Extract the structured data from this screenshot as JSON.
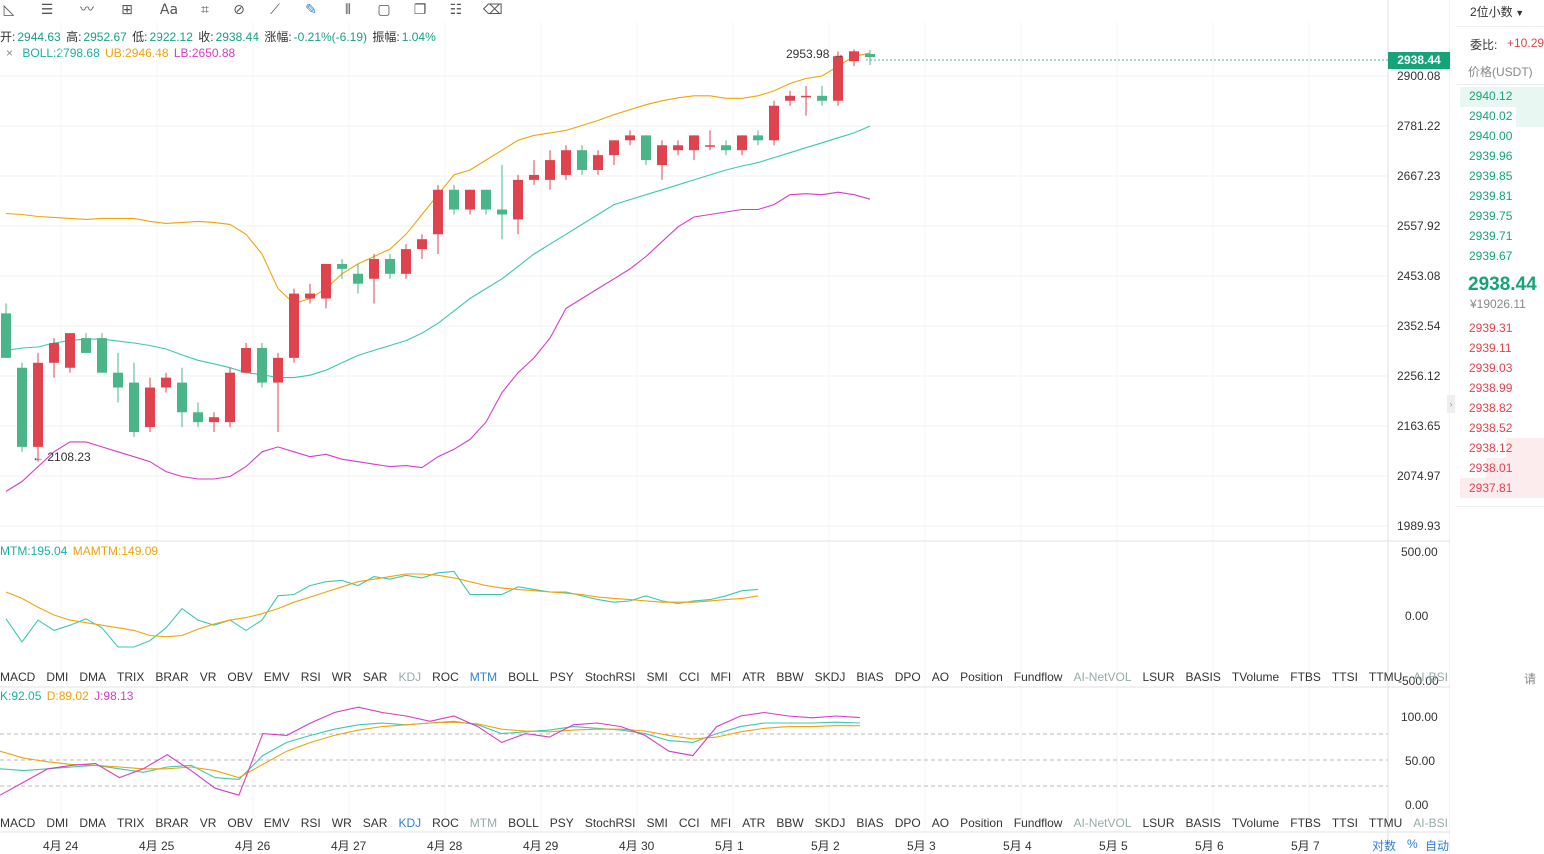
{
  "toolbar": {
    "icons": [
      "line-tool-icon",
      "horizontal-lines-icon",
      "wave-icon",
      "crosshair-add-icon",
      "text-icon",
      "brush-icon",
      "measure-icon",
      "ruler-icon",
      "pen-icon",
      "pattern-icon",
      "lock-icon",
      "copy-icon",
      "edit-icon",
      "trash-icon"
    ],
    "text_label": "Aa"
  },
  "ohlc": {
    "open_label": "开:",
    "open": "2944.63",
    "high_label": "高:",
    "high": "2952.67",
    "low_label": "低:",
    "low": "2922.12",
    "close_label": "收:",
    "close": "2938.44",
    "change_label": "涨幅:",
    "change": "-0.21%(-6.19)",
    "amp_label": "振幅:",
    "amp": "1.04%"
  },
  "boll": {
    "close_symbol": "×",
    "boll": "BOLL:2798.68",
    "ub": "UB:2946.48",
    "lb": "LB:2650.88"
  },
  "mtm": {
    "mtm": "MTM:195.04",
    "mamtm": "MAMTM:149.09"
  },
  "kdj": {
    "k": "K:92.05",
    "d": "D:89.02",
    "j": "J:98.13"
  },
  "price_axis": [
    "2900.08",
    "2781.22",
    "2667.23",
    "2557.92",
    "2453.08",
    "2352.54",
    "2256.12",
    "2163.65",
    "2074.97",
    "1989.93"
  ],
  "mtm_axis": [
    "500.00",
    "0.00",
    "-500.00"
  ],
  "kdj_axis": [
    "100.00",
    "50.00",
    "0.00"
  ],
  "last_price_tag": "2938.44",
  "annotations": {
    "high_mark": "2953.98",
    "low_mark": "2108.23"
  },
  "indicator_tabs": [
    "MACD",
    "DMI",
    "DMA",
    "TRIX",
    "BRAR",
    "VR",
    "OBV",
    "EMV",
    "RSI",
    "WR",
    "SAR",
    "KDJ",
    "ROC",
    "MTM",
    "BOLL",
    "PSY",
    "StochRSI",
    "SMI",
    "CCI",
    "MFI",
    "ATR",
    "BBW",
    "SKDJ",
    "BIAS",
    "DPO",
    "AO",
    "Position",
    "Fundflow",
    "AI-NetVOL",
    "LSUR",
    "BASIS",
    "TVolume",
    "FTBS",
    "TTSI",
    "TTMU",
    "AI-BSI"
  ],
  "time_axis": [
    "4月 24",
    "4月 25",
    "4月 26",
    "4月 27",
    "4月 28",
    "4月 29",
    "4月 30",
    "5月 1",
    "5月 2",
    "5月 3",
    "5月 4",
    "5月 5",
    "5月 6",
    "5月 7"
  ],
  "bottom_controls": {
    "log": "对数",
    "percent": "%",
    "auto": "自动"
  },
  "sidebar": {
    "decimals": "2位小数",
    "ratio_label": "委比:",
    "ratio_value": "+10.29",
    "price_header": "价格(USDT)",
    "bids": [
      "2940.12",
      "2940.02",
      "2940.00",
      "2939.96",
      "2939.85",
      "2939.81",
      "2939.75",
      "2939.71",
      "2939.67"
    ],
    "last_price": "2938.44",
    "last_price_cny": "¥19026.11",
    "asks": [
      "2939.31",
      "2939.11",
      "2939.03",
      "2938.99",
      "2938.82",
      "2938.52",
      "2938.12",
      "2938.01",
      "2937.81"
    ],
    "side_text": "请"
  },
  "colors": {
    "up": "#e0434e",
    "down": "#4bb58a",
    "mid": "#3cc8b0",
    "upper": "#f0a30a",
    "lower": "#d63cc6"
  },
  "chart_data": {
    "type": "candlestick",
    "title": "",
    "ylim": [
      1950,
      2980
    ],
    "candles": [
      {
        "o": 2420,
        "h": 2440,
        "l": 2330,
        "c": 2330
      },
      {
        "o": 2310,
        "h": 2320,
        "l": 2140,
        "c": 2150
      },
      {
        "o": 2150,
        "h": 2340,
        "l": 2120,
        "c": 2320
      },
      {
        "o": 2320,
        "h": 2370,
        "l": 2290,
        "c": 2360
      },
      {
        "o": 2310,
        "h": 2380,
        "l": 2300,
        "c": 2380
      },
      {
        "o": 2370,
        "h": 2380,
        "l": 2340,
        "c": 2340
      },
      {
        "o": 2370,
        "h": 2380,
        "l": 2300,
        "c": 2300
      },
      {
        "o": 2300,
        "h": 2340,
        "l": 2240,
        "c": 2270
      },
      {
        "o": 2280,
        "h": 2320,
        "l": 2170,
        "c": 2180
      },
      {
        "o": 2190,
        "h": 2290,
        "l": 2180,
        "c": 2270
      },
      {
        "o": 2270,
        "h": 2300,
        "l": 2260,
        "c": 2290
      },
      {
        "o": 2280,
        "h": 2310,
        "l": 2190,
        "c": 2220
      },
      {
        "o": 2220,
        "h": 2240,
        "l": 2190,
        "c": 2200
      },
      {
        "o": 2200,
        "h": 2220,
        "l": 2180,
        "c": 2210
      },
      {
        "o": 2200,
        "h": 2310,
        "l": 2190,
        "c": 2300
      },
      {
        "o": 2300,
        "h": 2360,
        "l": 2300,
        "c": 2350
      },
      {
        "o": 2350,
        "h": 2360,
        "l": 2270,
        "c": 2280
      },
      {
        "o": 2280,
        "h": 2340,
        "l": 2180,
        "c": 2330
      },
      {
        "o": 2330,
        "h": 2470,
        "l": 2320,
        "c": 2460
      },
      {
        "o": 2450,
        "h": 2480,
        "l": 2440,
        "c": 2460
      },
      {
        "o": 2450,
        "h": 2520,
        "l": 2430,
        "c": 2520
      },
      {
        "o": 2520,
        "h": 2530,
        "l": 2490,
        "c": 2510
      },
      {
        "o": 2500,
        "h": 2520,
        "l": 2460,
        "c": 2480
      },
      {
        "o": 2490,
        "h": 2540,
        "l": 2440,
        "c": 2530
      },
      {
        "o": 2530,
        "h": 2540,
        "l": 2490,
        "c": 2500
      },
      {
        "o": 2500,
        "h": 2560,
        "l": 2490,
        "c": 2550
      },
      {
        "o": 2550,
        "h": 2580,
        "l": 2530,
        "c": 2570
      },
      {
        "o": 2580,
        "h": 2680,
        "l": 2540,
        "c": 2670
      },
      {
        "o": 2670,
        "h": 2680,
        "l": 2620,
        "c": 2630
      },
      {
        "o": 2630,
        "h": 2670,
        "l": 2620,
        "c": 2670
      },
      {
        "o": 2670,
        "h": 2670,
        "l": 2620,
        "c": 2630
      },
      {
        "o": 2630,
        "h": 2720,
        "l": 2570,
        "c": 2620
      },
      {
        "o": 2610,
        "h": 2700,
        "l": 2580,
        "c": 2690
      },
      {
        "o": 2690,
        "h": 2730,
        "l": 2680,
        "c": 2700
      },
      {
        "o": 2690,
        "h": 2750,
        "l": 2670,
        "c": 2730
      },
      {
        "o": 2700,
        "h": 2760,
        "l": 2690,
        "c": 2750
      },
      {
        "o": 2750,
        "h": 2760,
        "l": 2700,
        "c": 2710
      },
      {
        "o": 2710,
        "h": 2750,
        "l": 2700,
        "c": 2740
      },
      {
        "o": 2740,
        "h": 2770,
        "l": 2720,
        "c": 2770
      },
      {
        "o": 2770,
        "h": 2790,
        "l": 2760,
        "c": 2780
      },
      {
        "o": 2780,
        "h": 2780,
        "l": 2720,
        "c": 2730
      },
      {
        "o": 2720,
        "h": 2770,
        "l": 2690,
        "c": 2760
      },
      {
        "o": 2750,
        "h": 2770,
        "l": 2740,
        "c": 2760
      },
      {
        "o": 2750,
        "h": 2780,
        "l": 2730,
        "c": 2780
      },
      {
        "o": 2760,
        "h": 2790,
        "l": 2750,
        "c": 2760
      },
      {
        "o": 2760,
        "h": 2770,
        "l": 2740,
        "c": 2750
      },
      {
        "o": 2750,
        "h": 2780,
        "l": 2740,
        "c": 2780
      },
      {
        "o": 2780,
        "h": 2790,
        "l": 2760,
        "c": 2770
      },
      {
        "o": 2770,
        "h": 2850,
        "l": 2760,
        "c": 2840
      },
      {
        "o": 2850,
        "h": 2870,
        "l": 2840,
        "c": 2860
      },
      {
        "o": 2860,
        "h": 2880,
        "l": 2820,
        "c": 2860
      },
      {
        "o": 2860,
        "h": 2880,
        "l": 2840,
        "c": 2850
      },
      {
        "o": 2850,
        "h": 2950,
        "l": 2840,
        "c": 2940
      },
      {
        "o": 2930,
        "h": 2954,
        "l": 2920,
        "c": 2950
      },
      {
        "o": 2944.63,
        "h": 2952.67,
        "l": 2922.12,
        "c": 2938.44
      }
    ],
    "boll_mid": [
      2345,
      2350,
      2352,
      2360,
      2365,
      2368,
      2368,
      2364,
      2360,
      2355,
      2348,
      2336,
      2325,
      2318,
      2310,
      2300,
      2296,
      2290,
      2290,
      2295,
      2305,
      2320,
      2335,
      2345,
      2355,
      2365,
      2380,
      2400,
      2425,
      2450,
      2470,
      2490,
      2515,
      2540,
      2560,
      2580,
      2600,
      2620,
      2640,
      2650,
      2660,
      2670,
      2680,
      2690,
      2700,
      2710,
      2718,
      2725,
      2735,
      2745,
      2755,
      2765,
      2775,
      2785,
      2798.68
    ],
    "boll_upper": [
      2622,
      2620,
      2616,
      2614,
      2612,
      2610,
      2612,
      2612,
      2612,
      2606,
      2602,
      2604,
      2606,
      2604,
      2600,
      2580,
      2540,
      2470,
      2440,
      2450,
      2470,
      2500,
      2520,
      2535,
      2550,
      2580,
      2620,
      2660,
      2700,
      2710,
      2730,
      2750,
      2770,
      2780,
      2785,
      2790,
      2800,
      2810,
      2822,
      2832,
      2842,
      2850,
      2856,
      2860,
      2860,
      2855,
      2855,
      2860,
      2870,
      2885,
      2895,
      2900,
      2920,
      2940,
      2946.48
    ],
    "boll_lower": [
      2060,
      2080,
      2110,
      2140,
      2160,
      2160,
      2150,
      2140,
      2130,
      2120,
      2100,
      2090,
      2085,
      2085,
      2090,
      2110,
      2140,
      2150,
      2140,
      2130,
      2135,
      2125,
      2120,
      2115,
      2110,
      2112,
      2108,
      2130,
      2145,
      2165,
      2200,
      2260,
      2300,
      2330,
      2370,
      2430,
      2450,
      2470,
      2490,
      2510,
      2535,
      2565,
      2595,
      2615,
      2620,
      2625,
      2630,
      2630,
      2640,
      2660,
      2662,
      2660,
      2665,
      2660,
      2650.88
    ],
    "mtm": [
      -30,
      -210,
      -40,
      -120,
      -80,
      -30,
      -100,
      -250,
      -250,
      -200,
      -100,
      50,
      -40,
      -80,
      -40,
      -120,
      -40,
      150,
      160,
      230,
      260,
      270,
      230,
      300,
      280,
      310,
      290,
      330,
      340,
      160,
      160,
      160,
      220,
      200,
      180,
      180,
      150,
      120,
      100,
      110,
      150,
      110,
      90,
      110,
      120,
      150,
      190,
      200
    ],
    "mamtm": [
      180,
      130,
      60,
      0,
      -40,
      -60,
      -80,
      -100,
      -120,
      -160,
      -170,
      -160,
      -110,
      -70,
      -40,
      -20,
      10,
      50,
      100,
      140,
      180,
      220,
      260,
      280,
      300,
      320,
      320,
      310,
      290,
      260,
      230,
      210,
      200,
      190,
      180,
      170,
      160,
      140,
      130,
      120,
      110,
      100,
      100,
      100,
      110,
      120,
      130,
      149.09
    ],
    "kdj_k": [
      40,
      38,
      40,
      42,
      44,
      40,
      36,
      42,
      44,
      30,
      28,
      55,
      70,
      78,
      85,
      90,
      92,
      90,
      92,
      94,
      90,
      80,
      82,
      84,
      88,
      86,
      84,
      80,
      72,
      70,
      80,
      88,
      92,
      92,
      92,
      93,
      92.05
    ],
    "kdj_d": [
      60,
      52,
      48,
      45,
      44,
      42,
      40,
      40,
      42,
      38,
      30,
      45,
      60,
      70,
      78,
      84,
      88,
      90,
      92,
      93,
      91,
      85,
      83,
      82,
      84,
      85,
      85,
      83,
      78,
      74,
      76,
      82,
      86,
      88,
      88,
      89,
      89.02
    ],
    "kdj_j": [
      10,
      25,
      40,
      44,
      46,
      30,
      40,
      56,
      38,
      18,
      10,
      80,
      78,
      92,
      104,
      110,
      104,
      100,
      94,
      100,
      88,
      70,
      80,
      76,
      90,
      92,
      88,
      78,
      60,
      55,
      88,
      100,
      104,
      100,
      98,
      100,
      98.13
    ]
  }
}
